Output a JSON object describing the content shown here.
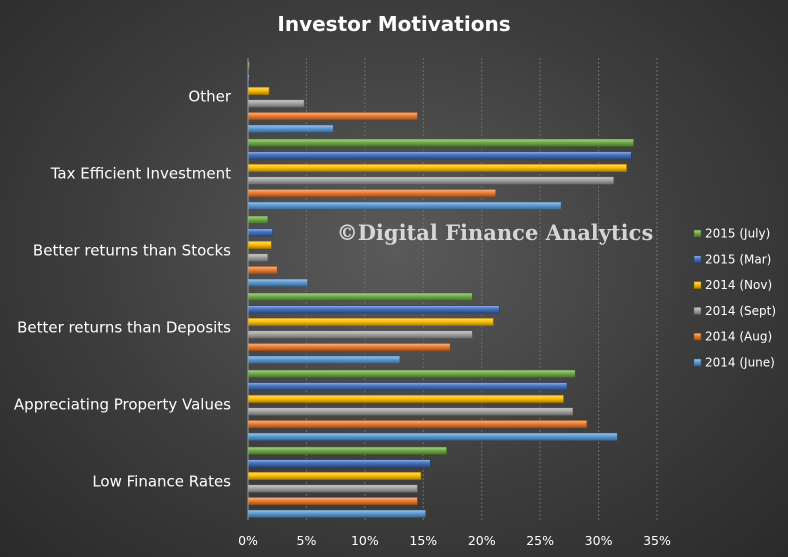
{
  "chart_data": {
    "type": "bar",
    "orientation": "horizontal",
    "title": "Investor Motivations",
    "watermark": "©Digital Finance Analytics",
    "categories": [
      "Other",
      "Tax Efficient Investment",
      "Better returns than Stocks",
      "Better returns than Deposits",
      "Appreciating Property Values",
      "Low Finance Rates"
    ],
    "xlim": [
      0,
      35
    ],
    "x_ticks": [
      "0%",
      "5%",
      "10%",
      "15%",
      "20%",
      "25%",
      "30%",
      "35%"
    ],
    "grid": true,
    "legend_position": "right",
    "series": [
      {
        "name": "2015 (July)",
        "color": "#70ad47",
        "values": [
          0,
          33,
          1.7,
          19.2,
          28,
          17
        ]
      },
      {
        "name": "2015 (Mar)",
        "color": "#4472c4",
        "values": [
          0,
          32.8,
          2.1,
          21.5,
          27.3,
          15.6
        ]
      },
      {
        "name": "2014 (Nov)",
        "color": "#ffc000",
        "values": [
          1.8,
          32.4,
          2,
          21,
          27,
          14.8
        ]
      },
      {
        "name": "2014 (Sept)",
        "color": "#a5a5a5",
        "values": [
          4.8,
          31.3,
          1.7,
          19.2,
          27.8,
          14.5
        ]
      },
      {
        "name": "2014 (Aug)",
        "color": "#ed7d31",
        "values": [
          14.5,
          21.2,
          2.5,
          17.3,
          29,
          14.5
        ]
      },
      {
        "name": "2014 (June)",
        "color": "#5b9bd5",
        "values": [
          7.3,
          26.8,
          5.1,
          13,
          31.6,
          15.2
        ]
      }
    ]
  }
}
